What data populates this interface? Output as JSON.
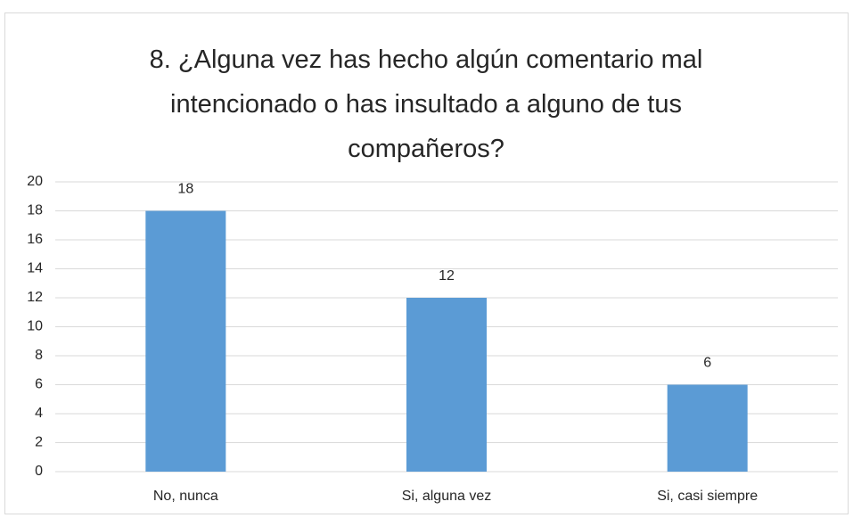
{
  "chart_data": {
    "type": "bar",
    "title": "8. ¿Alguna vez has hecho algún comentario mal intencionado o has insultado a alguno de tus compañeros?",
    "categories": [
      "No, nunca",
      "Si, alguna vez",
      "Si, casi siempre"
    ],
    "values": [
      18,
      12,
      6
    ],
    "color": "#5b9bd5",
    "ylim": [
      0,
      20
    ],
    "yticks": [
      0,
      2,
      4,
      6,
      8,
      10,
      12,
      14,
      16,
      18,
      20
    ],
    "grid": true
  }
}
